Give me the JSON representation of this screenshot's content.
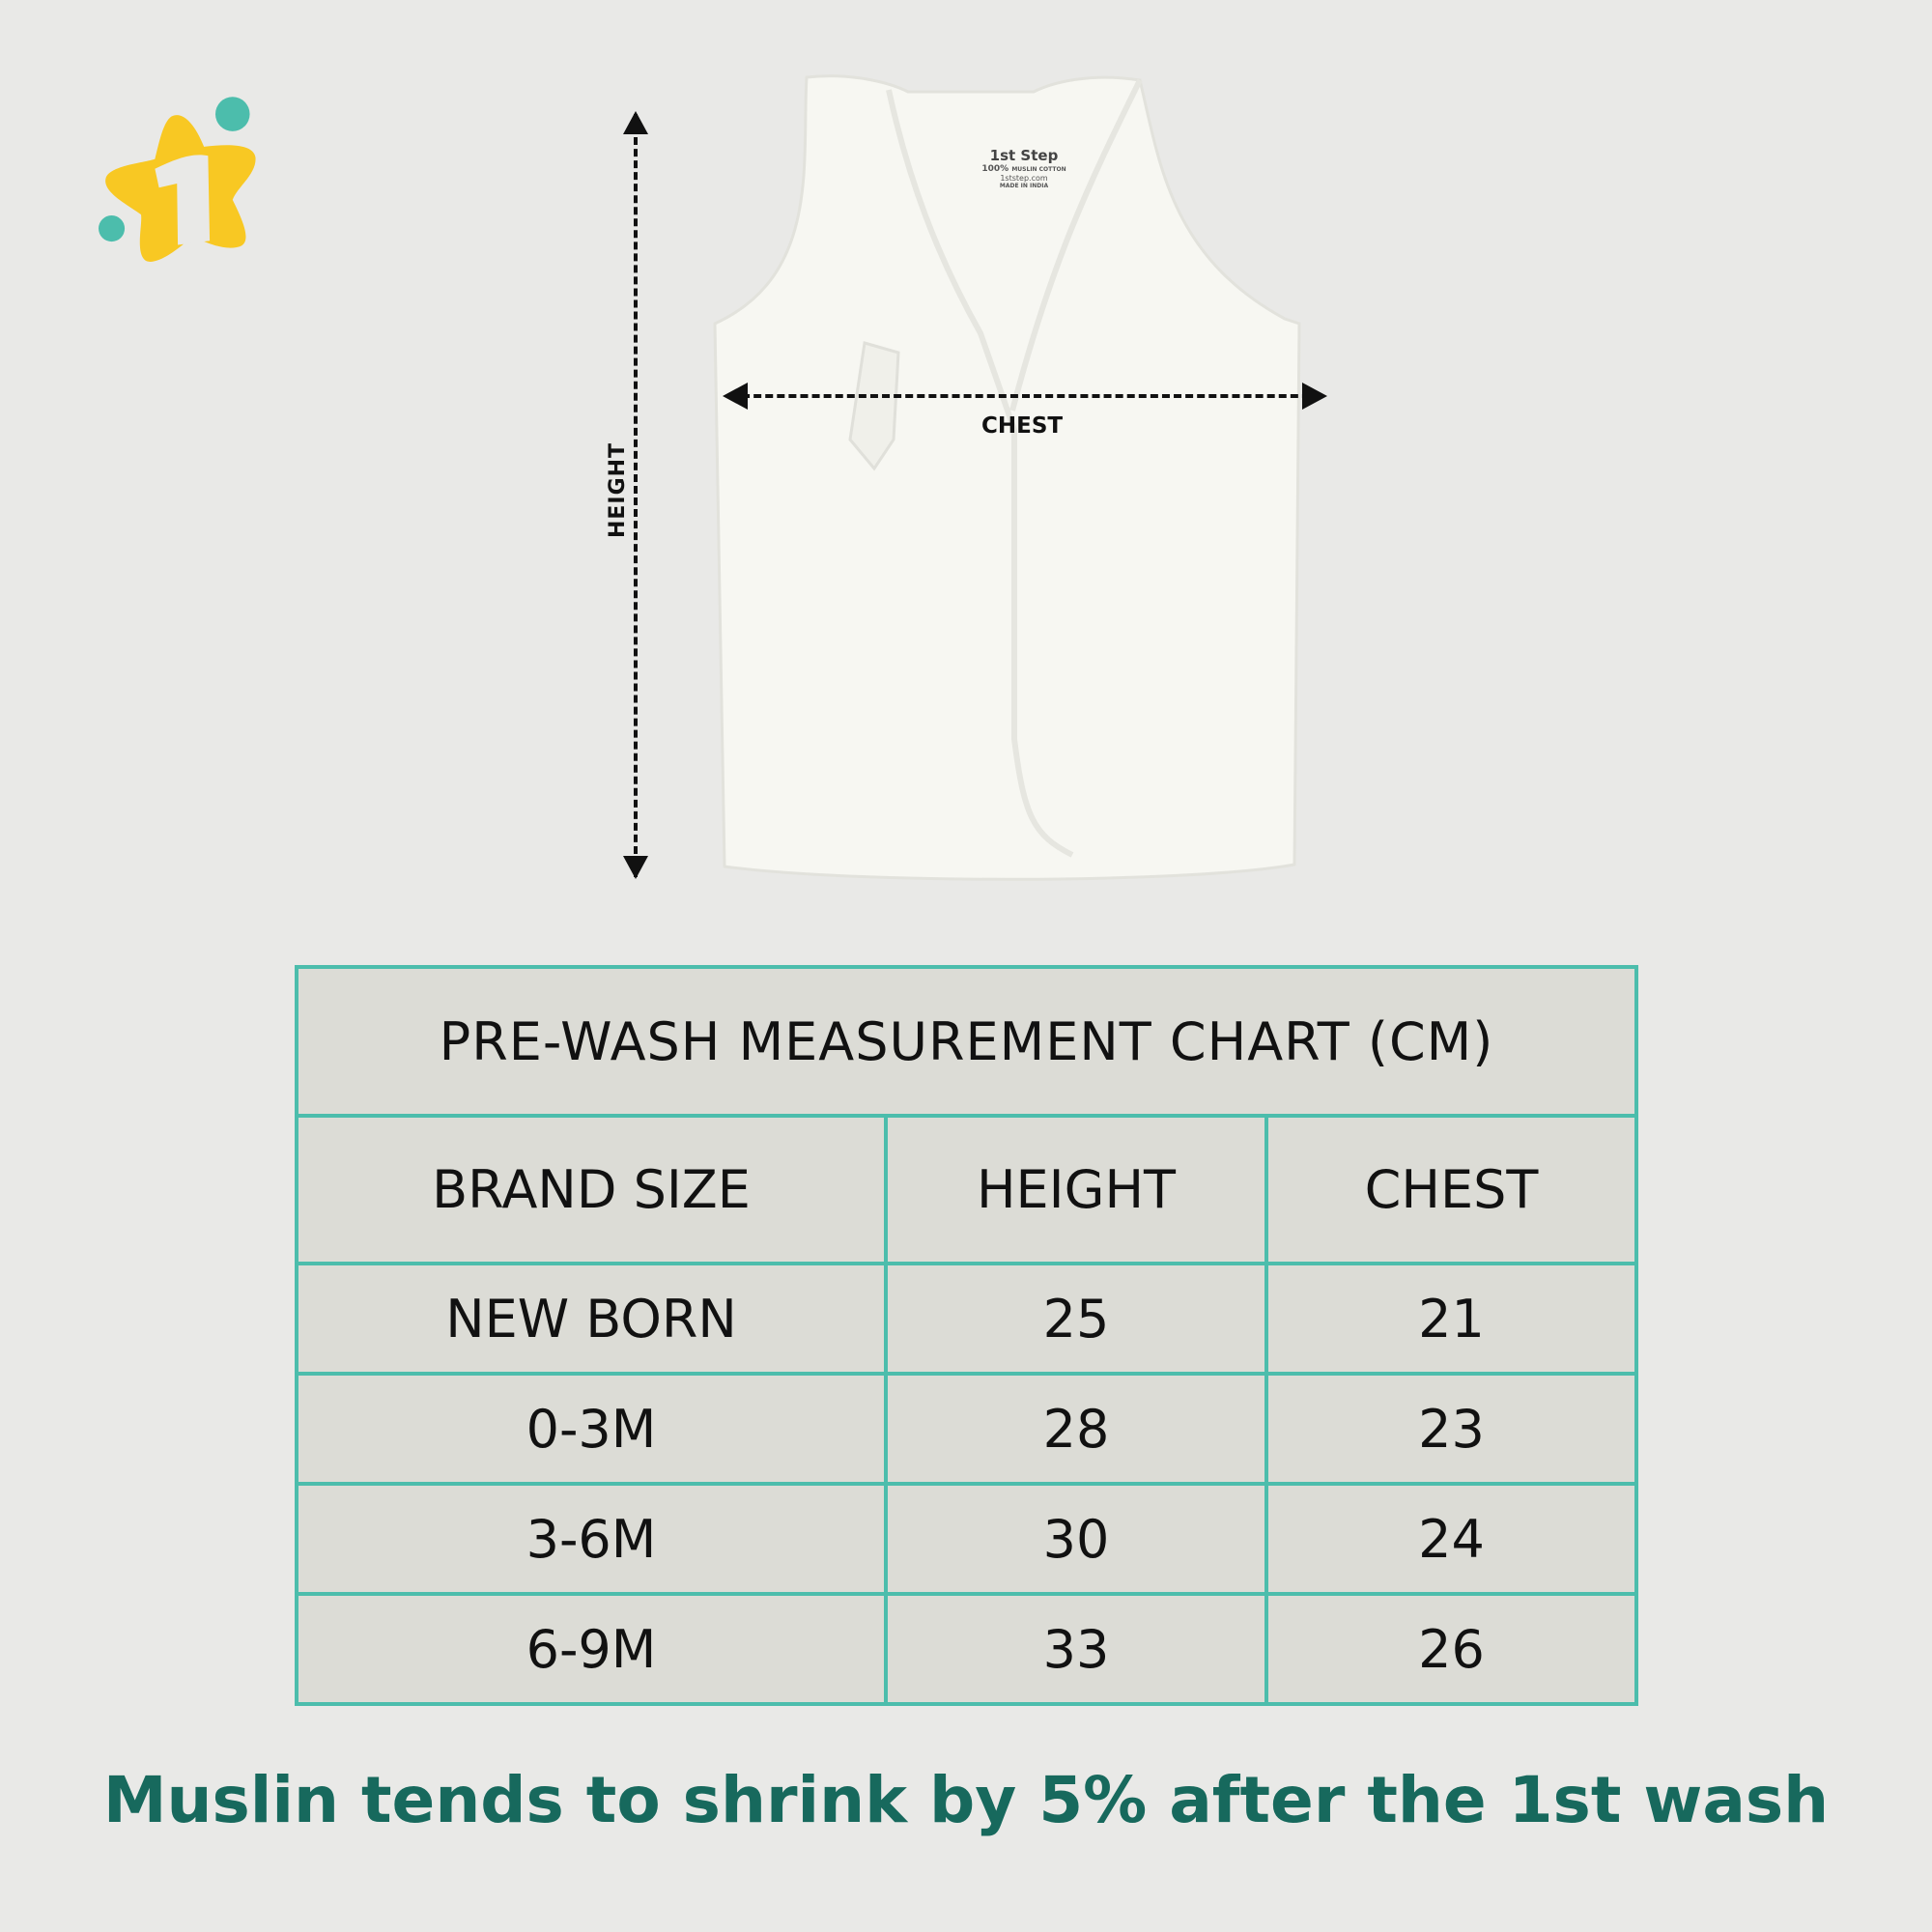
{
  "brand": {
    "logo": "1st Step",
    "colors": {
      "yellow": "#f8c823",
      "teal": "#4cbdac"
    }
  },
  "garment_label": {
    "brand": "1st Step",
    "fabric_percent": "100%",
    "fabric": "MUSLIN COTTON",
    "website": "1ststep.com",
    "origin": "MADE IN INDIA"
  },
  "diagram": {
    "height_label": "HEIGHT",
    "chest_label": "CHEST"
  },
  "table": {
    "title": "PRE-WASH MEASUREMENT CHART (CM)",
    "headers": [
      "BRAND SIZE",
      "HEIGHT",
      "CHEST"
    ],
    "rows": [
      [
        "NEW BORN",
        "25",
        "21"
      ],
      [
        "0-3M",
        "28",
        "23"
      ],
      [
        "3-6M",
        "30",
        "24"
      ],
      [
        "6-9M",
        "33",
        "26"
      ]
    ],
    "border_color": "#4cbdac"
  },
  "footer": "Muslin tends to shrink by 5% after the 1st wash"
}
